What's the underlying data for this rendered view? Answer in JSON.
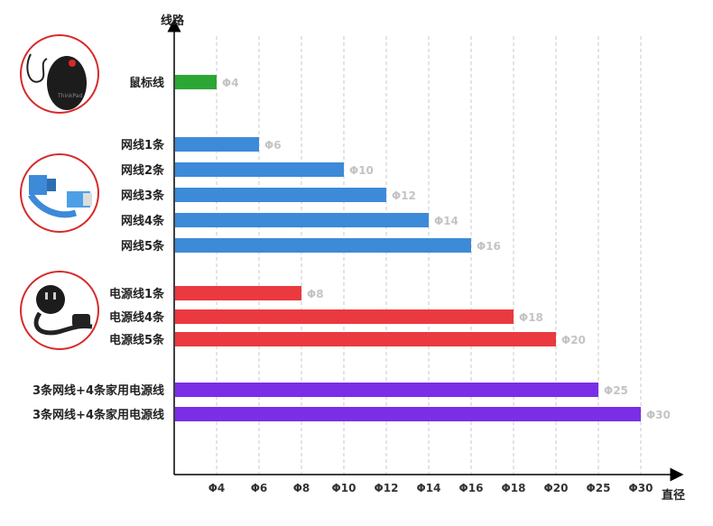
{
  "chart_data": {
    "type": "bar",
    "orientation": "horizontal",
    "title": "",
    "ylabel": "线路",
    "xlabel": "直径",
    "tick_labels": [
      "Φ4",
      "Φ6",
      "Φ8",
      "Φ10",
      "Φ12",
      "Φ14",
      "Φ16",
      "Φ18",
      "Φ20",
      "Φ25",
      "Φ30"
    ],
    "grid": true,
    "groups": [
      {
        "name": "mouse",
        "color": "#2ca634",
        "items": [
          {
            "label": "鼠标线",
            "value_label": "Φ4",
            "tick_index": 0
          }
        ]
      },
      {
        "name": "network",
        "color": "#3d8ad8",
        "items": [
          {
            "label": "网线1条",
            "value_label": "Φ6",
            "tick_index": 1
          },
          {
            "label": "网线2条",
            "value_label": "Φ10",
            "tick_index": 3
          },
          {
            "label": "网线3条",
            "value_label": "Φ12",
            "tick_index": 4
          },
          {
            "label": "网线4条",
            "value_label": "Φ14",
            "tick_index": 5
          },
          {
            "label": "网线5条",
            "value_label": "Φ16",
            "tick_index": 6
          }
        ]
      },
      {
        "name": "power",
        "color": "#ea3a3f",
        "items": [
          {
            "label": "电源线1条",
            "value_label": "Φ8",
            "tick_index": 2
          },
          {
            "label": "电源线4条",
            "value_label": "Φ18",
            "tick_index": 7
          },
          {
            "label": "电源线5条",
            "value_label": "Φ20",
            "tick_index": 8
          }
        ]
      },
      {
        "name": "combined",
        "color": "#7a2ee6",
        "items": [
          {
            "label": "3条网线+4条家用电源线",
            "value_label": "Φ25",
            "tick_index": 9
          },
          {
            "label": "3条网线+4条家用电源线",
            "value_label": "Φ30",
            "tick_index": 10
          }
        ]
      }
    ]
  },
  "icons": [
    "mouse-photo-icon",
    "network-cable-photo-icon",
    "power-cable-photo-icon"
  ]
}
